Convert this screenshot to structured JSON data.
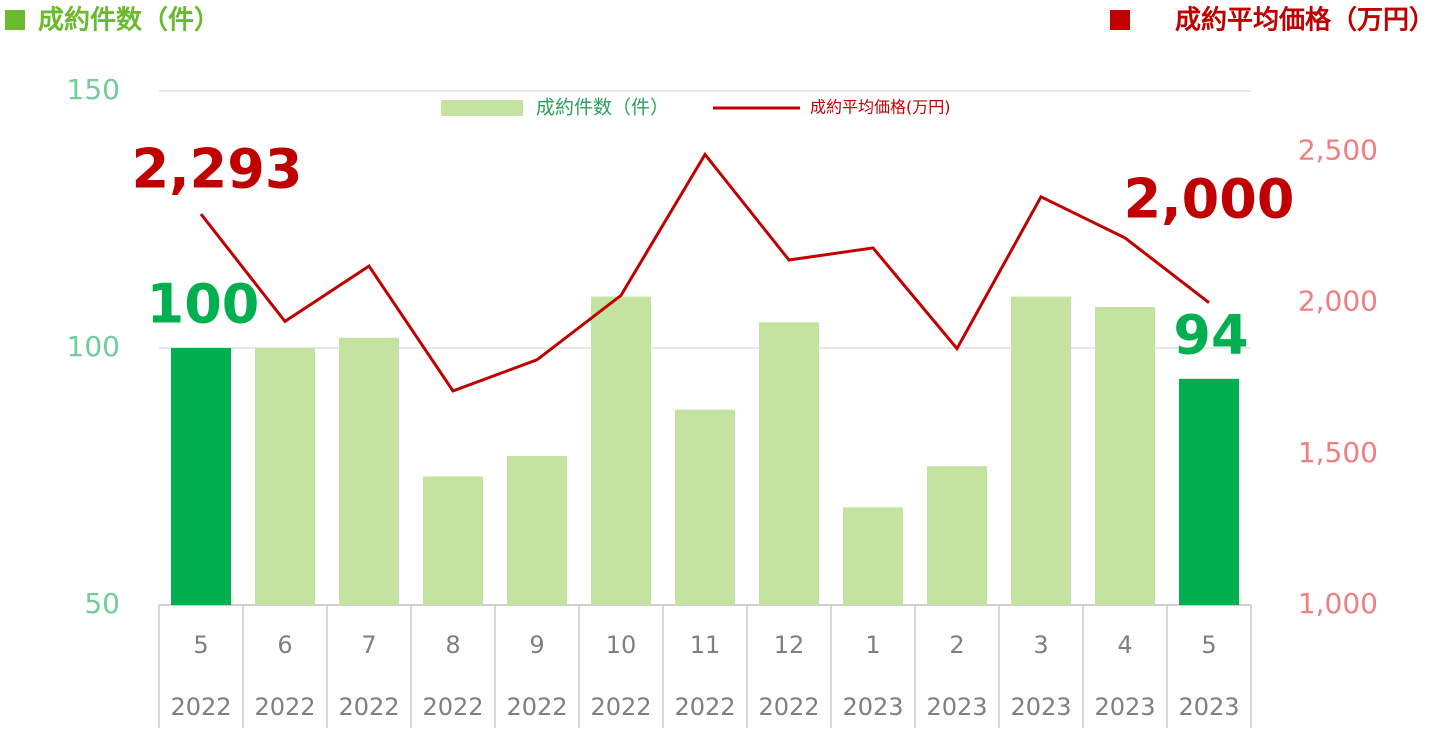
{
  "chart_data": {
    "type": "bar_line",
    "y_axis_title": "成約件数（件）",
    "y2_axis_title": "成約平均価格（万円）",
    "categories": [
      "5",
      "6",
      "7",
      "8",
      "9",
      "10",
      "11",
      "12",
      "1",
      "2",
      "3",
      "4",
      "5"
    ],
    "years": [
      "2022",
      "2022",
      "2022",
      "2022",
      "2022",
      "2022",
      "2022",
      "2022",
      "2023",
      "2023",
      "2023",
      "2023",
      "2023"
    ],
    "series": [
      {
        "name": "成約件数（件）",
        "type": "bar",
        "color": "#c5e3a0",
        "colors": [
          "#00b050",
          "#c5e3a0",
          "#c5e3a0",
          "#c5e3a0",
          "#c5e3a0",
          "#c5e3a0",
          "#c5e3a0",
          "#c5e3a0",
          "#c5e3a0",
          "#c5e3a0",
          "#c5e3a0",
          "#c5e3a0",
          "#00b050"
        ],
        "label_color": "#00b050",
        "values": [
          100,
          100,
          102,
          75,
          79,
          110,
          88,
          105,
          69,
          77,
          110,
          108,
          94
        ],
        "value_labels": [
          "100",
          null,
          null,
          null,
          null,
          null,
          null,
          null,
          null,
          null,
          null,
          null,
          "94"
        ]
      },
      {
        "name": "成約平均価格(万円)",
        "type": "line",
        "axis": "y2",
        "color": "#c00000",
        "label_color": "#c00000",
        "values": [
          2293,
          1938,
          2121,
          1708,
          1811,
          2024,
          2490,
          2141,
          2181,
          1848,
          2350,
          2214,
          2000
        ],
        "value_labels": [
          "2,293",
          null,
          null,
          null,
          null,
          null,
          null,
          null,
          null,
          null,
          null,
          null,
          "2,000"
        ]
      }
    ],
    "ylim": [
      50,
      150
    ],
    "yticks": [
      50,
      100,
      150
    ],
    "y2lim": [
      1000,
      2700
    ],
    "y2ticks": [
      {
        "value": 1000,
        "label": "1,000"
      },
      {
        "value": 1500,
        "label": "1,500"
      },
      {
        "value": 2000,
        "label": "2,000"
      },
      {
        "value": 2500,
        "label": "2,500"
      }
    ],
    "grid": true
  }
}
